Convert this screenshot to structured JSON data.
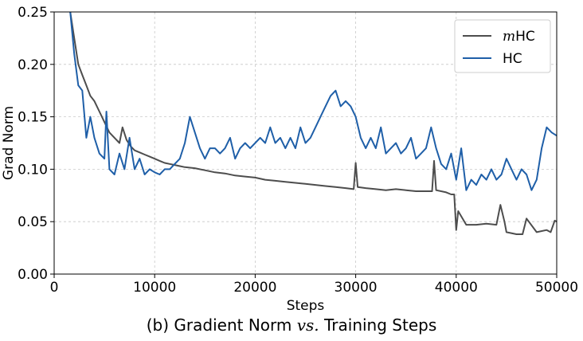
{
  "chart_data": {
    "type": "line",
    "xlabel": "Steps",
    "ylabel": "Grad Norm",
    "xlim": [
      0,
      50000
    ],
    "ylim": [
      0,
      0.25
    ],
    "xticks": [
      0,
      10000,
      20000,
      30000,
      40000,
      50000
    ],
    "xtick_labels": [
      "0",
      "10000",
      "20000",
      "30000",
      "40000",
      "50000"
    ],
    "yticks": [
      0,
      0.05,
      0.1,
      0.15,
      0.2,
      0.25
    ],
    "ytick_labels": [
      "0.00",
      "0.05",
      "0.10",
      "0.15",
      "0.20",
      "0.25"
    ],
    "grid": true,
    "legend_position": "top-right",
    "series": [
      {
        "name": "mHC",
        "name_prefix": "m",
        "name_suffix": "HC",
        "color": "#4d4d4d",
        "x": [
          1600,
          2000,
          2400,
          2800,
          3200,
          3600,
          4000,
          4500,
          5000,
          5500,
          6000,
          6500,
          6800,
          7200,
          7600,
          8000,
          8500,
          9000,
          9500,
          10000,
          10500,
          11000,
          11500,
          12000,
          12500,
          13000,
          14000,
          15000,
          16000,
          17000,
          18000,
          19000,
          20000,
          21000,
          22000,
          23000,
          24000,
          25000,
          26000,
          27000,
          28000,
          29000,
          29800,
          30000,
          30200,
          31000,
          32000,
          33000,
          34000,
          35000,
          36000,
          37000,
          37600,
          37800,
          38000,
          39000,
          39500,
          39800,
          40000,
          40200,
          41000,
          42000,
          43000,
          44000,
          44400,
          44800,
          45000,
          46000,
          46600,
          47000,
          48000,
          49000,
          49400,
          49800,
          50000
        ],
        "values": [
          0.25,
          0.225,
          0.2,
          0.19,
          0.18,
          0.17,
          0.165,
          0.155,
          0.145,
          0.135,
          0.13,
          0.125,
          0.14,
          0.128,
          0.122,
          0.118,
          0.116,
          0.114,
          0.112,
          0.11,
          0.108,
          0.106,
          0.105,
          0.104,
          0.103,
          0.102,
          0.101,
          0.099,
          0.097,
          0.096,
          0.094,
          0.093,
          0.092,
          0.09,
          0.089,
          0.088,
          0.087,
          0.086,
          0.085,
          0.084,
          0.083,
          0.082,
          0.081,
          0.106,
          0.083,
          0.082,
          0.081,
          0.08,
          0.081,
          0.08,
          0.079,
          0.079,
          0.079,
          0.108,
          0.08,
          0.078,
          0.076,
          0.076,
          0.042,
          0.06,
          0.047,
          0.047,
          0.048,
          0.047,
          0.066,
          0.05,
          0.04,
          0.038,
          0.038,
          0.053,
          0.04,
          0.042,
          0.04,
          0.051,
          0.05
        ]
      },
      {
        "name": "HC",
        "color": "#1f5fa8",
        "x": [
          1600,
          2000,
          2400,
          2800,
          3200,
          3600,
          4000,
          4500,
          5000,
          5200,
          5500,
          6000,
          6500,
          7000,
          7500,
          8000,
          8500,
          9000,
          9500,
          10000,
          10500,
          11000,
          11500,
          12000,
          12500,
          13000,
          13500,
          14000,
          14500,
          15000,
          15500,
          16000,
          16500,
          17000,
          17500,
          18000,
          18500,
          19000,
          19500,
          20000,
          20500,
          21000,
          21500,
          22000,
          22500,
          23000,
          23500,
          24000,
          24500,
          25000,
          25500,
          26000,
          26500,
          27000,
          27500,
          28000,
          28500,
          29000,
          29500,
          30000,
          30500,
          31000,
          31500,
          32000,
          32500,
          33000,
          33500,
          34000,
          34500,
          35000,
          35500,
          36000,
          36500,
          37000,
          37500,
          38000,
          38500,
          39000,
          39500,
          40000,
          40500,
          41000,
          41500,
          42000,
          42500,
          43000,
          43500,
          44000,
          44500,
          45000,
          45500,
          46000,
          46500,
          47000,
          47500,
          48000,
          48500,
          49000,
          49500,
          50000
        ],
        "values": [
          0.25,
          0.21,
          0.18,
          0.175,
          0.13,
          0.15,
          0.13,
          0.115,
          0.11,
          0.155,
          0.1,
          0.095,
          0.115,
          0.1,
          0.13,
          0.1,
          0.11,
          0.095,
          0.1,
          0.097,
          0.095,
          0.1,
          0.1,
          0.105,
          0.11,
          0.125,
          0.15,
          0.135,
          0.12,
          0.11,
          0.12,
          0.12,
          0.115,
          0.12,
          0.13,
          0.11,
          0.12,
          0.125,
          0.12,
          0.125,
          0.13,
          0.125,
          0.14,
          0.125,
          0.13,
          0.12,
          0.13,
          0.12,
          0.14,
          0.125,
          0.13,
          0.14,
          0.15,
          0.16,
          0.17,
          0.175,
          0.16,
          0.165,
          0.16,
          0.15,
          0.13,
          0.12,
          0.13,
          0.12,
          0.14,
          0.115,
          0.12,
          0.125,
          0.115,
          0.12,
          0.13,
          0.11,
          0.115,
          0.12,
          0.14,
          0.12,
          0.105,
          0.1,
          0.115,
          0.09,
          0.12,
          0.08,
          0.09,
          0.085,
          0.095,
          0.09,
          0.1,
          0.09,
          0.095,
          0.11,
          0.1,
          0.09,
          0.1,
          0.095,
          0.08,
          0.09,
          0.12,
          0.14,
          0.135,
          0.132
        ]
      }
    ]
  },
  "caption": {
    "prefix": "(b) Gradient Norm ",
    "vs": "vs.",
    "suffix": " Training Steps"
  }
}
